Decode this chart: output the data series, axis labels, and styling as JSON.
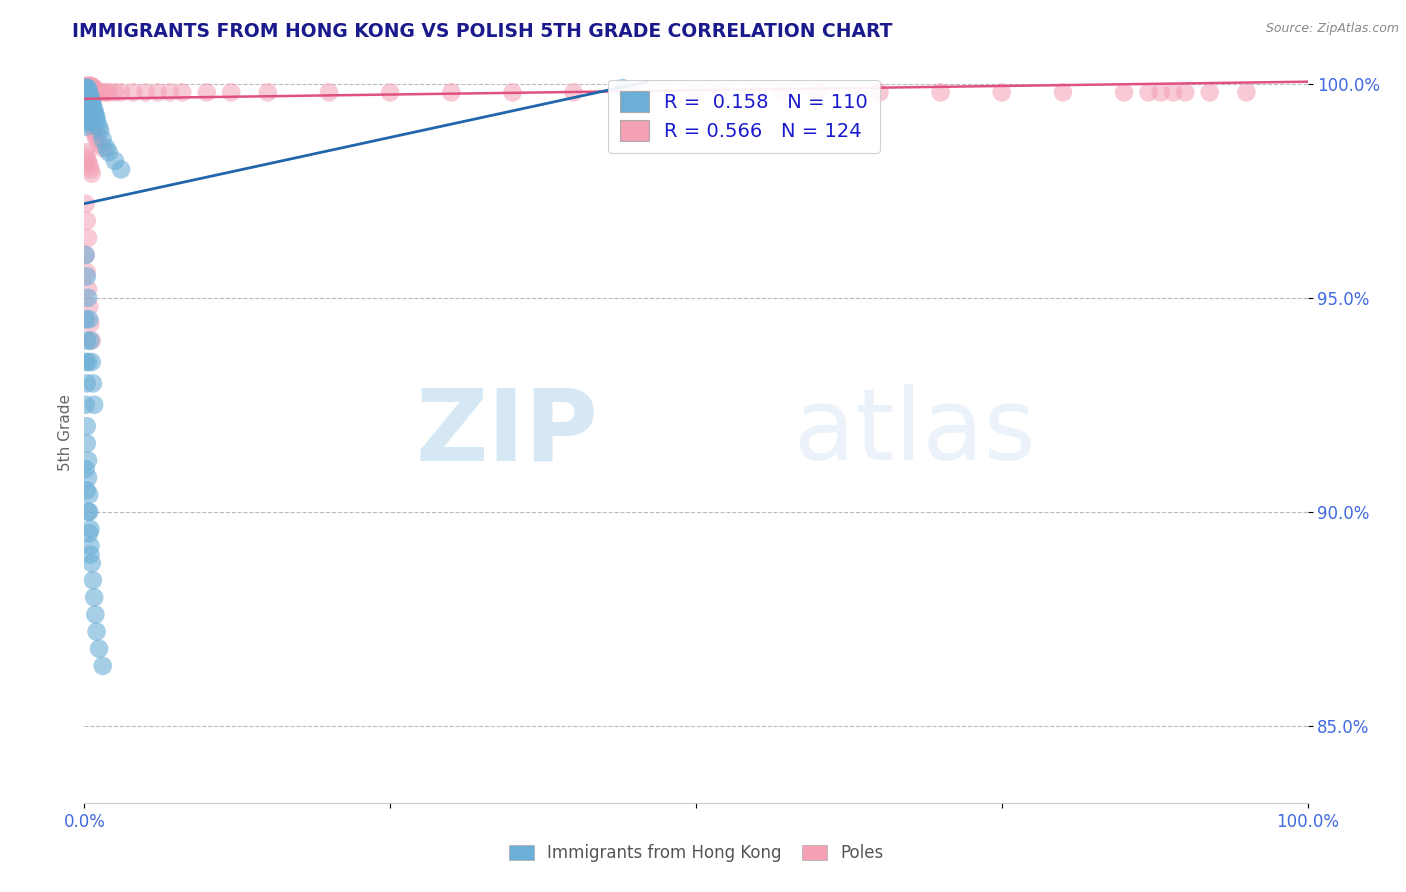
{
  "title": "IMMIGRANTS FROM HONG KONG VS POLISH 5TH GRADE CORRELATION CHART",
  "source": "Source: ZipAtlas.com",
  "ylabel": "5th Grade",
  "hk_R": 0.158,
  "hk_N": 110,
  "poles_R": 0.566,
  "poles_N": 124,
  "hk_color": "#6baed6",
  "poles_color": "#f4a0b5",
  "hk_line_color": "#2166ac",
  "poles_line_color": "#e05080",
  "background_color": "#ffffff",
  "title_color": "#1a1a8c",
  "tick_color": "#4169e1",
  "legend_R_color": "#1a1acd",
  "watermark_zip": "ZIP",
  "watermark_atlas": "atlas",
  "legend_labels": [
    "Immigrants from Hong Kong",
    "Poles"
  ],
  "hk_scatter_x": [
    0.001,
    0.001,
    0.001,
    0.001,
    0.001,
    0.001,
    0.001,
    0.001,
    0.001,
    0.001,
    0.001,
    0.001,
    0.001,
    0.001,
    0.001,
    0.001,
    0.001,
    0.001,
    0.001,
    0.001,
    0.002,
    0.002,
    0.002,
    0.002,
    0.002,
    0.002,
    0.002,
    0.002,
    0.002,
    0.002,
    0.003,
    0.003,
    0.003,
    0.003,
    0.003,
    0.003,
    0.003,
    0.003,
    0.003,
    0.004,
    0.004,
    0.004,
    0.004,
    0.004,
    0.004,
    0.004,
    0.005,
    0.005,
    0.005,
    0.005,
    0.005,
    0.006,
    0.006,
    0.006,
    0.006,
    0.007,
    0.007,
    0.007,
    0.008,
    0.008,
    0.008,
    0.009,
    0.009,
    0.01,
    0.01,
    0.012,
    0.013,
    0.015,
    0.018,
    0.02,
    0.025,
    0.03,
    0.001,
    0.002,
    0.002,
    0.003,
    0.003,
    0.004,
    0.004,
    0.005,
    0.005,
    0.006,
    0.007,
    0.008,
    0.009,
    0.01,
    0.012,
    0.015,
    0.001,
    0.002,
    0.003,
    0.004,
    0.005,
    0.001,
    0.002,
    0.001,
    0.002,
    0.003,
    0.44,
    0.001,
    0.002,
    0.003,
    0.004,
    0.005,
    0.006,
    0.007,
    0.008
  ],
  "hk_scatter_y": [
    0.999,
    0.999,
    0.998,
    0.998,
    0.998,
    0.997,
    0.997,
    0.997,
    0.996,
    0.996,
    0.996,
    0.995,
    0.995,
    0.994,
    0.994,
    0.993,
    0.993,
    0.992,
    0.991,
    0.99,
    0.999,
    0.998,
    0.998,
    0.997,
    0.997,
    0.996,
    0.995,
    0.994,
    0.993,
    0.992,
    0.999,
    0.998,
    0.997,
    0.996,
    0.995,
    0.994,
    0.993,
    0.992,
    0.991,
    0.998,
    0.997,
    0.996,
    0.995,
    0.994,
    0.993,
    0.992,
    0.997,
    0.996,
    0.995,
    0.994,
    0.993,
    0.996,
    0.995,
    0.994,
    0.993,
    0.995,
    0.994,
    0.993,
    0.994,
    0.993,
    0.992,
    0.993,
    0.992,
    0.992,
    0.991,
    0.99,
    0.989,
    0.987,
    0.985,
    0.984,
    0.982,
    0.98,
    0.925,
    0.92,
    0.916,
    0.912,
    0.908,
    0.904,
    0.9,
    0.896,
    0.892,
    0.888,
    0.884,
    0.88,
    0.876,
    0.872,
    0.868,
    0.864,
    0.91,
    0.905,
    0.9,
    0.895,
    0.89,
    0.935,
    0.93,
    0.945,
    0.94,
    0.935,
    0.999,
    0.96,
    0.955,
    0.95,
    0.945,
    0.94,
    0.935,
    0.93,
    0.925
  ],
  "poles_scatter_x": [
    0.001,
    0.001,
    0.001,
    0.001,
    0.001,
    0.001,
    0.001,
    0.001,
    0.001,
    0.001,
    0.002,
    0.002,
    0.002,
    0.002,
    0.002,
    0.002,
    0.002,
    0.002,
    0.003,
    0.003,
    0.003,
    0.003,
    0.003,
    0.003,
    0.004,
    0.004,
    0.004,
    0.004,
    0.004,
    0.005,
    0.005,
    0.005,
    0.005,
    0.006,
    0.006,
    0.006,
    0.007,
    0.007,
    0.008,
    0.008,
    0.01,
    0.01,
    0.012,
    0.015,
    0.018,
    0.02,
    0.025,
    0.03,
    0.04,
    0.05,
    0.06,
    0.07,
    0.08,
    0.1,
    0.12,
    0.15,
    0.2,
    0.25,
    0.3,
    0.35,
    0.4,
    0.45,
    0.5,
    0.55,
    0.6,
    0.65,
    0.7,
    0.75,
    0.8,
    0.85,
    0.87,
    0.88,
    0.89,
    0.9,
    0.92,
    0.95,
    0.001,
    0.001,
    0.001,
    0.001,
    0.002,
    0.002,
    0.003,
    0.003,
    0.004,
    0.005,
    0.006,
    0.007,
    0.008,
    0.009,
    0.01,
    0.012,
    0.015,
    0.001,
    0.002,
    0.003,
    0.004,
    0.005,
    0.006,
    0.001,
    0.002,
    0.003,
    0.52,
    0.57,
    0.001,
    0.002,
    0.003,
    0.004,
    0.005,
    0.006
  ],
  "poles_scatter_y": [
    0.9995,
    0.999,
    0.999,
    0.9985,
    0.998,
    0.998,
    0.9975,
    0.997,
    0.997,
    0.9965,
    0.9995,
    0.999,
    0.999,
    0.9985,
    0.998,
    0.998,
    0.9975,
    0.997,
    0.9995,
    0.999,
    0.9985,
    0.998,
    0.9975,
    0.997,
    0.9995,
    0.999,
    0.9985,
    0.998,
    0.9975,
    0.9995,
    0.999,
    0.9985,
    0.998,
    0.9995,
    0.999,
    0.9985,
    0.999,
    0.9985,
    0.999,
    0.9985,
    0.9985,
    0.998,
    0.998,
    0.998,
    0.998,
    0.998,
    0.998,
    0.998,
    0.998,
    0.998,
    0.998,
    0.998,
    0.998,
    0.998,
    0.998,
    0.998,
    0.998,
    0.998,
    0.998,
    0.998,
    0.998,
    0.998,
    0.998,
    0.998,
    0.998,
    0.998,
    0.998,
    0.998,
    0.998,
    0.998,
    0.998,
    0.998,
    0.998,
    0.998,
    0.998,
    0.998,
    0.996,
    0.995,
    0.994,
    0.993,
    0.995,
    0.994,
    0.994,
    0.993,
    0.993,
    0.992,
    0.991,
    0.99,
    0.989,
    0.988,
    0.987,
    0.986,
    0.985,
    0.984,
    0.983,
    0.982,
    0.981,
    0.98,
    0.979,
    0.972,
    0.968,
    0.964,
    0.998,
    0.998,
    0.96,
    0.956,
    0.952,
    0.948,
    0.944,
    0.94
  ]
}
